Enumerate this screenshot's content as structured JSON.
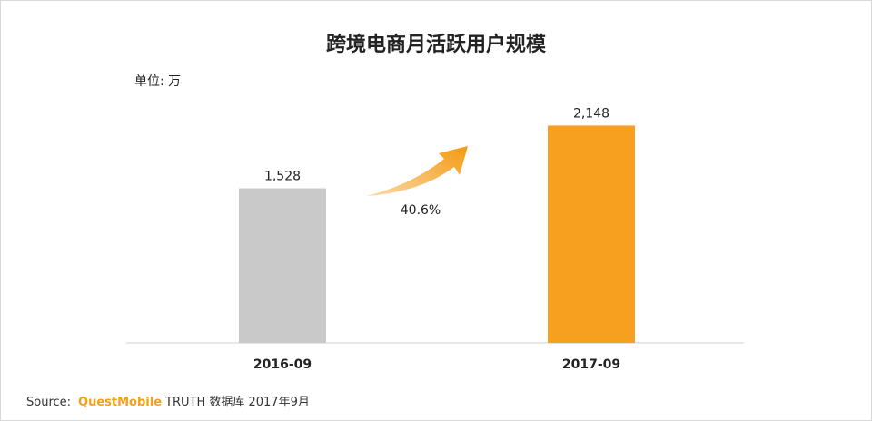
{
  "chart_data": {
    "type": "bar",
    "title": "跨境电商月活跃用户规模",
    "unit_label": "单位: 万",
    "categories": [
      "2016-09",
      "2017-09"
    ],
    "values": [
      1528,
      2148
    ],
    "value_labels": [
      "1,528",
      "2,148"
    ],
    "bar_colors": [
      "#c9c9c9",
      "#f7a020"
    ],
    "growth_label": "40.6%",
    "growth_arrow_color": "#f5a01a",
    "ylim": [
      0,
      2600
    ]
  },
  "source": {
    "prefix": "Source:",
    "brand": "QuestMobile",
    "rest": "TRUTH 数据库 2017年9月"
  }
}
